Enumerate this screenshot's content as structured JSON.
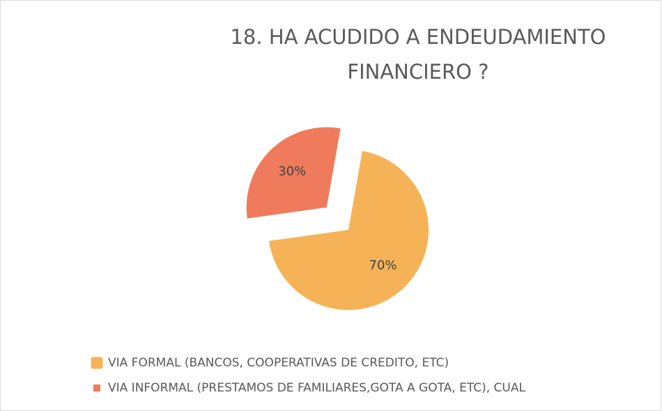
{
  "chart_data": {
    "type": "pie",
    "title": "18. HA ACUDIDO A ENDEUDAMIENTO FINANCIERO ?",
    "categories": [
      "VIA FORMAL (BANCOS, COOPERATIVAS DE CREDITO, ETC)",
      "VIA INFORMAL (PRESTAMOS DE FAMILIARES,GOTA A GOTA, ETC), CUAL"
    ],
    "values": [
      70,
      30
    ],
    "value_labels": [
      "70%",
      "30%"
    ],
    "colors": [
      "#F5B256",
      "#EF7B5C"
    ],
    "legend": "bottom"
  }
}
